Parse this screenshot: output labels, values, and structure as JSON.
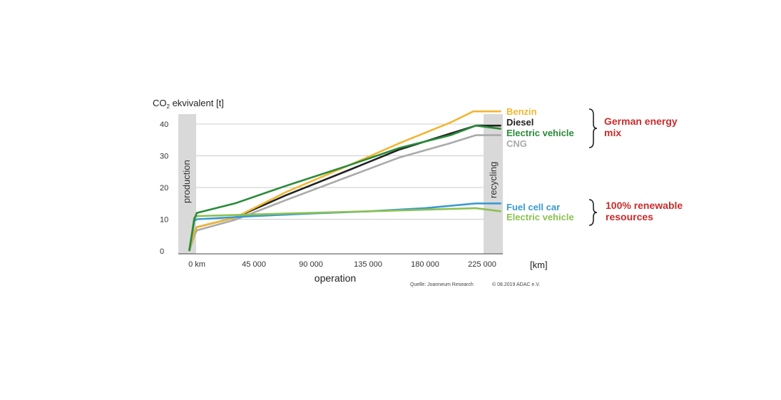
{
  "chart_data": {
    "type": "line",
    "ylabel": {
      "main": "CO",
      "sub": "2",
      "rest": " ekvivalent [t]"
    },
    "xlabel": "operation",
    "x_unit": "[km]",
    "ylim": [
      0,
      45
    ],
    "yticks": [
      "0",
      "10",
      "20",
      "30",
      "40"
    ],
    "yvals": [
      0,
      10,
      20,
      30,
      40
    ],
    "x_ticks": [
      "0 km",
      "45 000",
      "90 000",
      "135 000",
      "180 000",
      "225 000"
    ],
    "x_tick_vals": [
      0,
      45000,
      90000,
      135000,
      180000,
      225000
    ],
    "phases": {
      "production": "production",
      "recycling": "recycling"
    },
    "series": [
      {
        "name": "Benzin",
        "color": "#f2b632",
        "group": 0,
        "points": [
          [
            -6000,
            0
          ],
          [
            -2000,
            6
          ],
          [
            0,
            7.5
          ],
          [
            30000,
            10.5
          ],
          [
            70000,
            18.5
          ],
          [
            120000,
            27
          ],
          [
            160000,
            34
          ],
          [
            200000,
            40.5
          ],
          [
            218000,
            44
          ],
          [
            240000,
            44
          ]
        ]
      },
      {
        "name": "Diesel",
        "color": "#222222",
        "group": 0,
        "points": [
          [
            -6000,
            0
          ],
          [
            -2000,
            6
          ],
          [
            0,
            7.5
          ],
          [
            30000,
            10.5
          ],
          [
            70000,
            17.5
          ],
          [
            120000,
            25.5
          ],
          [
            160000,
            32
          ],
          [
            200000,
            37
          ],
          [
            220000,
            39.5
          ],
          [
            240000,
            39.5
          ]
        ]
      },
      {
        "name": "Electric vehicle",
        "color": "#2a8a3a",
        "group": 0,
        "points": [
          [
            -6000,
            0
          ],
          [
            -2000,
            10
          ],
          [
            0,
            12
          ],
          [
            30000,
            15
          ],
          [
            70000,
            20.5
          ],
          [
            120000,
            27
          ],
          [
            160000,
            32.5
          ],
          [
            200000,
            36.5
          ],
          [
            220000,
            39.5
          ],
          [
            240000,
            38.5
          ]
        ]
      },
      {
        "name": "CNG",
        "color": "#aaaaaa",
        "group": 0,
        "points": [
          [
            -6000,
            0
          ],
          [
            -2000,
            5
          ],
          [
            0,
            6.5
          ],
          [
            30000,
            9.8
          ],
          [
            70000,
            16
          ],
          [
            120000,
            23.5
          ],
          [
            160000,
            29.5
          ],
          [
            200000,
            34
          ],
          [
            220000,
            36.5
          ],
          [
            240000,
            36.5
          ]
        ]
      },
      {
        "name": "Fuel cell car",
        "color": "#3a9ad1",
        "group": 1,
        "points": [
          [
            -6000,
            0
          ],
          [
            -2000,
            9.5
          ],
          [
            0,
            10
          ],
          [
            45000,
            11
          ],
          [
            90000,
            11.8
          ],
          [
            135000,
            12.5
          ],
          [
            180000,
            13.5
          ],
          [
            220000,
            15
          ],
          [
            240000,
            15
          ]
        ]
      },
      {
        "name": "Electric vehicle",
        "color": "#8cc152",
        "group": 1,
        "points": [
          [
            -6000,
            0
          ],
          [
            -2000,
            10.5
          ],
          [
            0,
            11
          ],
          [
            45000,
            11.5
          ],
          [
            90000,
            12
          ],
          [
            135000,
            12.5
          ],
          [
            180000,
            13
          ],
          [
            220000,
            13.5
          ],
          [
            240000,
            12.5
          ]
        ]
      }
    ],
    "legend_groups": [
      "German energy mix",
      "100% renewable resources"
    ],
    "legend_group_lines": [
      [
        "German energy",
        "mix"
      ],
      [
        "100% renewable",
        "resources"
      ]
    ],
    "source": "Quelle:  Joanneum Research",
    "copyright": "© 08.2019 ADAC e.V.",
    "grid": "horizontal",
    "legend_placement": "right"
  }
}
